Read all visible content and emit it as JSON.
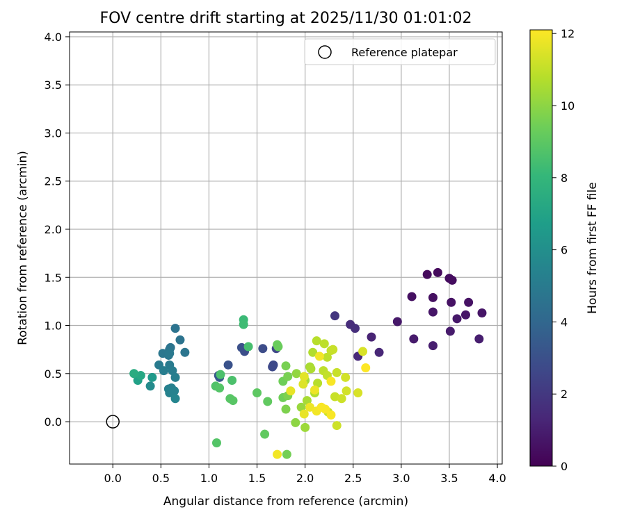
{
  "chart_data": {
    "type": "scatter",
    "title": "FOV centre drift starting at 2025/11/30 01:01:02",
    "xlabel": "Angular distance from reference (arcmin)",
    "ylabel": "Rotation from reference (arcmin)",
    "xlim": [
      -0.45,
      4.05
    ],
    "ylim": [
      -0.44,
      4.05
    ],
    "xticks": [
      0.0,
      0.5,
      1.0,
      1.5,
      2.0,
      2.5,
      3.0,
      3.5,
      4.0
    ],
    "xtick_labels": [
      "0.0",
      "0.5",
      "1.0",
      "1.5",
      "2.0",
      "2.5",
      "3.0",
      "3.5",
      "4.0"
    ],
    "yticks": [
      0.0,
      0.5,
      1.0,
      1.5,
      2.0,
      2.5,
      3.0,
      3.5,
      4.0
    ],
    "ytick_labels": [
      "0.0",
      "0.5",
      "1.0",
      "1.5",
      "2.0",
      "2.5",
      "3.0",
      "3.5",
      "4.0"
    ],
    "grid": true,
    "legend": {
      "placement": "top-right",
      "entries": [
        {
          "label": "Reference platepar",
          "marker": "hollow-circle"
        }
      ]
    },
    "reference_point": {
      "x": 0.0,
      "y": 0.0
    },
    "colorbar": {
      "label": "Hours from first FF file",
      "colormap": "viridis",
      "range": [
        0,
        12.1
      ],
      "ticks": [
        0,
        2,
        4,
        6,
        8,
        10,
        12
      ],
      "tick_labels": [
        "0",
        "2",
        "4",
        "6",
        "8",
        "10",
        "12"
      ]
    },
    "points": [
      {
        "x": 3.27,
        "y": 1.53,
        "c": 0.3
      },
      {
        "x": 3.38,
        "y": 1.55,
        "c": 0.3
      },
      {
        "x": 3.5,
        "y": 1.49,
        "c": 0.4
      },
      {
        "x": 3.53,
        "y": 1.47,
        "c": 0.4
      },
      {
        "x": 3.11,
        "y": 1.3,
        "c": 0.5
      },
      {
        "x": 3.33,
        "y": 1.29,
        "c": 0.5
      },
      {
        "x": 3.52,
        "y": 1.24,
        "c": 0.6
      },
      {
        "x": 3.7,
        "y": 1.24,
        "c": 0.6
      },
      {
        "x": 3.33,
        "y": 1.14,
        "c": 0.7
      },
      {
        "x": 3.67,
        "y": 1.11,
        "c": 0.7
      },
      {
        "x": 3.84,
        "y": 1.13,
        "c": 0.7
      },
      {
        "x": 3.58,
        "y": 1.07,
        "c": 0.8
      },
      {
        "x": 2.96,
        "y": 1.04,
        "c": 0.8
      },
      {
        "x": 3.51,
        "y": 0.94,
        "c": 0.9
      },
      {
        "x": 3.13,
        "y": 0.86,
        "c": 0.9
      },
      {
        "x": 3.81,
        "y": 0.86,
        "c": 1.0
      },
      {
        "x": 3.33,
        "y": 0.79,
        "c": 1.0
      },
      {
        "x": 2.69,
        "y": 0.88,
        "c": 1.2
      },
      {
        "x": 2.77,
        "y": 0.72,
        "c": 1.3
      },
      {
        "x": 2.55,
        "y": 0.68,
        "c": 1.4
      },
      {
        "x": 2.47,
        "y": 1.01,
        "c": 1.5
      },
      {
        "x": 2.52,
        "y": 0.97,
        "c": 1.6
      },
      {
        "x": 2.31,
        "y": 1.1,
        "c": 1.9
      },
      {
        "x": 1.7,
        "y": 0.76,
        "c": 2.6
      },
      {
        "x": 1.67,
        "y": 0.59,
        "c": 2.7
      },
      {
        "x": 1.66,
        "y": 0.57,
        "c": 2.7
      },
      {
        "x": 1.56,
        "y": 0.76,
        "c": 2.8
      },
      {
        "x": 1.37,
        "y": 0.73,
        "c": 2.9
      },
      {
        "x": 1.34,
        "y": 0.77,
        "c": 3.0
      },
      {
        "x": 1.2,
        "y": 0.59,
        "c": 3.1
      },
      {
        "x": 1.1,
        "y": 0.48,
        "c": 3.3
      },
      {
        "x": 1.11,
        "y": 0.46,
        "c": 3.4
      },
      {
        "x": 0.65,
        "y": 0.97,
        "c": 4.6
      },
      {
        "x": 0.7,
        "y": 0.85,
        "c": 4.6
      },
      {
        "x": 0.6,
        "y": 0.77,
        "c": 4.6
      },
      {
        "x": 0.59,
        "y": 0.75,
        "c": 4.7
      },
      {
        "x": 0.75,
        "y": 0.72,
        "c": 4.7
      },
      {
        "x": 0.52,
        "y": 0.71,
        "c": 4.8
      },
      {
        "x": 0.58,
        "y": 0.69,
        "c": 4.8
      },
      {
        "x": 0.59,
        "y": 0.71,
        "c": 4.9
      },
      {
        "x": 0.48,
        "y": 0.59,
        "c": 5.0
      },
      {
        "x": 0.59,
        "y": 0.59,
        "c": 5.0
      },
      {
        "x": 0.53,
        "y": 0.53,
        "c": 5.1
      },
      {
        "x": 0.62,
        "y": 0.53,
        "c": 5.1
      },
      {
        "x": 0.65,
        "y": 0.46,
        "c": 5.2
      },
      {
        "x": 0.58,
        "y": 0.34,
        "c": 5.3
      },
      {
        "x": 0.61,
        "y": 0.35,
        "c": 5.3
      },
      {
        "x": 0.59,
        "y": 0.3,
        "c": 5.4
      },
      {
        "x": 0.64,
        "y": 0.32,
        "c": 5.4
      },
      {
        "x": 0.65,
        "y": 0.24,
        "c": 5.5
      },
      {
        "x": 0.39,
        "y": 0.37,
        "c": 5.8
      },
      {
        "x": 0.41,
        "y": 0.46,
        "c": 6.5
      },
      {
        "x": 0.26,
        "y": 0.43,
        "c": 6.9
      },
      {
        "x": 0.29,
        "y": 0.48,
        "c": 7.2
      },
      {
        "x": 0.22,
        "y": 0.5,
        "c": 7.4
      },
      {
        "x": 1.36,
        "y": 1.06,
        "c": 8.2
      },
      {
        "x": 1.36,
        "y": 1.01,
        "c": 8.3
      },
      {
        "x": 1.41,
        "y": 0.78,
        "c": 8.5
      },
      {
        "x": 1.24,
        "y": 0.43,
        "c": 8.6
      },
      {
        "x": 1.12,
        "y": 0.49,
        "c": 8.6
      },
      {
        "x": 1.07,
        "y": 0.37,
        "c": 8.7
      },
      {
        "x": 1.11,
        "y": 0.35,
        "c": 8.8
      },
      {
        "x": 1.22,
        "y": 0.24,
        "c": 8.9
      },
      {
        "x": 1.25,
        "y": 0.22,
        "c": 8.9
      },
      {
        "x": 1.5,
        "y": 0.3,
        "c": 9.0
      },
      {
        "x": 1.61,
        "y": 0.21,
        "c": 9.1
      },
      {
        "x": 1.08,
        "y": -0.22,
        "c": 8.8
      },
      {
        "x": 1.58,
        "y": -0.13,
        "c": 9.1
      },
      {
        "x": 1.71,
        "y": 0.8,
        "c": 9.3
      },
      {
        "x": 1.72,
        "y": 0.78,
        "c": 9.3
      },
      {
        "x": 1.77,
        "y": 0.42,
        "c": 9.4
      },
      {
        "x": 1.77,
        "y": 0.25,
        "c": 9.4
      },
      {
        "x": 1.8,
        "y": 0.58,
        "c": 9.6
      },
      {
        "x": 1.82,
        "y": 0.47,
        "c": 9.6
      },
      {
        "x": 1.82,
        "y": 0.27,
        "c": 9.7
      },
      {
        "x": 1.8,
        "y": 0.13,
        "c": 9.7
      },
      {
        "x": 1.81,
        "y": -0.34,
        "c": 9.5
      },
      {
        "x": 1.9,
        "y": -0.01,
        "c": 10.0
      },
      {
        "x": 1.91,
        "y": 0.5,
        "c": 10.1
      },
      {
        "x": 1.96,
        "y": 0.15,
        "c": 10.2
      },
      {
        "x": 2.0,
        "y": -0.06,
        "c": 10.3
      },
      {
        "x": 2.0,
        "y": 0.43,
        "c": 10.4
      },
      {
        "x": 2.02,
        "y": 0.22,
        "c": 10.5
      },
      {
        "x": 2.05,
        "y": 0.57,
        "c": 10.5
      },
      {
        "x": 2.06,
        "y": 0.55,
        "c": 10.6
      },
      {
        "x": 2.08,
        "y": 0.72,
        "c": 10.7
      },
      {
        "x": 2.1,
        "y": 0.3,
        "c": 10.7
      },
      {
        "x": 2.12,
        "y": 0.84,
        "c": 10.8
      },
      {
        "x": 2.13,
        "y": 0.4,
        "c": 10.8
      },
      {
        "x": 2.19,
        "y": 0.53,
        "c": 10.9
      },
      {
        "x": 2.2,
        "y": 0.81,
        "c": 10.9
      },
      {
        "x": 2.23,
        "y": 0.67,
        "c": 10.9
      },
      {
        "x": 2.23,
        "y": 0.48,
        "c": 11.0
      },
      {
        "x": 2.24,
        "y": 0.1,
        "c": 11.0
      },
      {
        "x": 2.27,
        "y": 0.74,
        "c": 11.0
      },
      {
        "x": 2.29,
        "y": 0.75,
        "c": 11.1
      },
      {
        "x": 2.31,
        "y": 0.26,
        "c": 11.1
      },
      {
        "x": 2.33,
        "y": 0.51,
        "c": 11.1
      },
      {
        "x": 2.33,
        "y": -0.04,
        "c": 11.2
      },
      {
        "x": 2.38,
        "y": 0.24,
        "c": 11.2
      },
      {
        "x": 2.42,
        "y": 0.46,
        "c": 11.3
      },
      {
        "x": 2.43,
        "y": 0.32,
        "c": 11.3
      },
      {
        "x": 2.55,
        "y": 0.3,
        "c": 11.4
      },
      {
        "x": 2.6,
        "y": 0.73,
        "c": 11.4
      },
      {
        "x": 1.98,
        "y": 0.39,
        "c": 11.5
      },
      {
        "x": 1.99,
        "y": 0.47,
        "c": 11.6
      },
      {
        "x": 1.99,
        "y": 0.08,
        "c": 11.7
      },
      {
        "x": 2.05,
        "y": 0.15,
        "c": 11.8
      },
      {
        "x": 2.1,
        "y": 0.33,
        "c": 11.8
      },
      {
        "x": 2.12,
        "y": 0.11,
        "c": 11.9
      },
      {
        "x": 2.15,
        "y": 0.68,
        "c": 11.9
      },
      {
        "x": 2.17,
        "y": 0.15,
        "c": 12.0
      },
      {
        "x": 2.21,
        "y": 0.13,
        "c": 12.0
      },
      {
        "x": 2.27,
        "y": 0.07,
        "c": 12.0
      },
      {
        "x": 2.27,
        "y": 0.42,
        "c": 12.0
      },
      {
        "x": 2.63,
        "y": 0.56,
        "c": 12.1
      },
      {
        "x": 1.85,
        "y": 0.32,
        "c": 11.7
      },
      {
        "x": 1.71,
        "y": -0.34,
        "c": 11.9
      }
    ]
  }
}
